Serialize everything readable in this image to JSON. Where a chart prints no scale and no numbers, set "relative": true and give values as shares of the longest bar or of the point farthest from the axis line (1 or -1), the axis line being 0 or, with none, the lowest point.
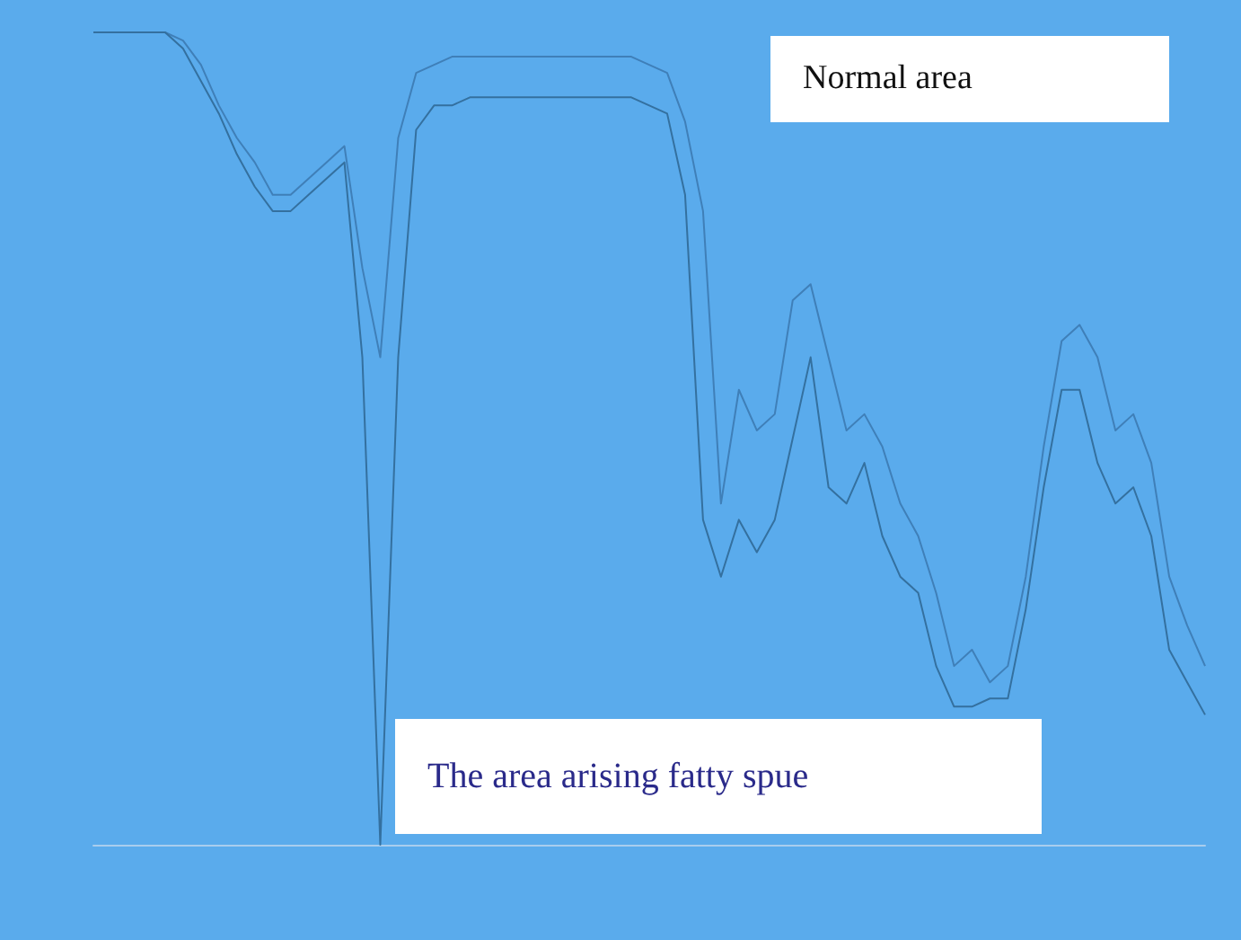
{
  "chart_data": {
    "type": "line",
    "relative": true,
    "tick_labels": false,
    "marker": "none",
    "categories": [
      null,
      null,
      null,
      null,
      null,
      null,
      null,
      null,
      null,
      null,
      null,
      null,
      null,
      null,
      null,
      null,
      null,
      null,
      null,
      null,
      null,
      null,
      null,
      null,
      null,
      null,
      null,
      null,
      null,
      null,
      null,
      null,
      null,
      null,
      null,
      null,
      null,
      null,
      null,
      null,
      null,
      null,
      null,
      null,
      null,
      null,
      null,
      null,
      null,
      null,
      null,
      null,
      null,
      null,
      null,
      null,
      null,
      null,
      null,
      null,
      null,
      null,
      null
    ],
    "series": [
      {
        "color": "#3f7fb8",
        "values": [
          1,
          1,
          1,
          1,
          1,
          0.99,
          0.96,
          0.91,
          0.87,
          0.84,
          0.8,
          0.8,
          0.82,
          0.84,
          0.86,
          0.71,
          0.6,
          0.87,
          0.95,
          0.96,
          0.97,
          0.97,
          0.97,
          0.97,
          0.97,
          0.97,
          0.97,
          0.97,
          0.97,
          0.97,
          0.97,
          0.96,
          0.95,
          0.89,
          0.78,
          0.42,
          0.56,
          0.51,
          0.53,
          0.67,
          0.69,
          0.6,
          0.51,
          0.53,
          0.49,
          0.42,
          0.38,
          0.31,
          0.22,
          0.24,
          0.2,
          0.22,
          0.33,
          0.49,
          0.62,
          0.64,
          0.6,
          0.51,
          0.53,
          0.47,
          0.33,
          0.27,
          0.22
        ]
      },
      {
        "color": "#34709f",
        "values": [
          1,
          1,
          1,
          1,
          1,
          0.98,
          0.94,
          0.9,
          0.85,
          0.81,
          0.78,
          0.78,
          0.8,
          0.82,
          0.84,
          0.6,
          0,
          0.6,
          0.88,
          0.91,
          0.91,
          0.92,
          0.92,
          0.92,
          0.92,
          0.92,
          0.92,
          0.92,
          0.92,
          0.92,
          0.92,
          0.91,
          0.9,
          0.8,
          0.4,
          0.33,
          0.4,
          0.36,
          0.4,
          0.5,
          0.6,
          0.44,
          0.42,
          0.47,
          0.38,
          0.33,
          0.31,
          0.22,
          0.17,
          0.17,
          0.18,
          0.18,
          0.29,
          0.44,
          0.56,
          0.56,
          0.47,
          0.42,
          0.44,
          0.38,
          0.24,
          0.2,
          0.16
        ]
      }
    ],
    "annotations": [
      "Normal area",
      "The area arising fatty spue"
    ]
  }
}
